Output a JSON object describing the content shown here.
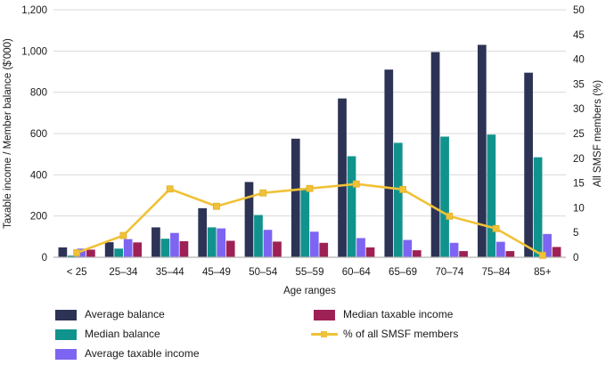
{
  "chart_data": {
    "type": "bar",
    "title": "",
    "categories": [
      "< 25",
      "25–34",
      "35–44",
      "45–49",
      "50–54",
      "55–59",
      "60–64",
      "65–69",
      "70–74",
      "75–84",
      "85+"
    ],
    "series": [
      {
        "name": "Average balance",
        "color": "#2c3355",
        "axis": "left",
        "values": [
          48,
          73,
          145,
          238,
          365,
          575,
          770,
          910,
          995,
          1030,
          895
        ]
      },
      {
        "name": "Median balance",
        "color": "#11938d",
        "axis": "left",
        "values": [
          8,
          42,
          90,
          145,
          205,
          335,
          490,
          555,
          585,
          595,
          485
        ]
      },
      {
        "name": "Average taxable income",
        "color": "#7d64f2",
        "axis": "left",
        "values": [
          42,
          88,
          118,
          140,
          133,
          124,
          93,
          84,
          70,
          75,
          113
        ]
      },
      {
        "name": "Median taxable income",
        "color": "#9e2155",
        "axis": "left",
        "values": [
          37,
          72,
          78,
          80,
          76,
          70,
          48,
          34,
          30,
          30,
          50
        ]
      }
    ],
    "line_series": {
      "name": "% of all SMSF members",
      "type": "line",
      "color": "#f0c237",
      "marker": "square",
      "axis": "right",
      "values": [
        0.9,
        4.4,
        13.8,
        10.3,
        13.0,
        13.9,
        14.8,
        13.7,
        8.3,
        5.8,
        0.4
      ]
    },
    "left_axis": {
      "label": "Taxable income / Member balance ($'000)",
      "min": 0,
      "max": 1200,
      "step": 200,
      "tick_labels": [
        "0",
        "200",
        "400",
        "600",
        "800",
        "1,000",
        "1,200"
      ]
    },
    "right_axis": {
      "label": "All SMSF members (%)",
      "min": 0,
      "max": 50,
      "step": 5,
      "tick_labels": [
        "0",
        "5",
        "10",
        "15",
        "20",
        "25",
        "30",
        "35",
        "40",
        "45",
        "50"
      ]
    },
    "x_axis": {
      "label": "Age ranges"
    },
    "grid": "horizontal",
    "legend_position": "bottom",
    "colors": {
      "gridline": "#d9d9d9",
      "axis_line": "#b3b3b3",
      "text": "#1a1a1a",
      "background": "#ffffff"
    }
  }
}
